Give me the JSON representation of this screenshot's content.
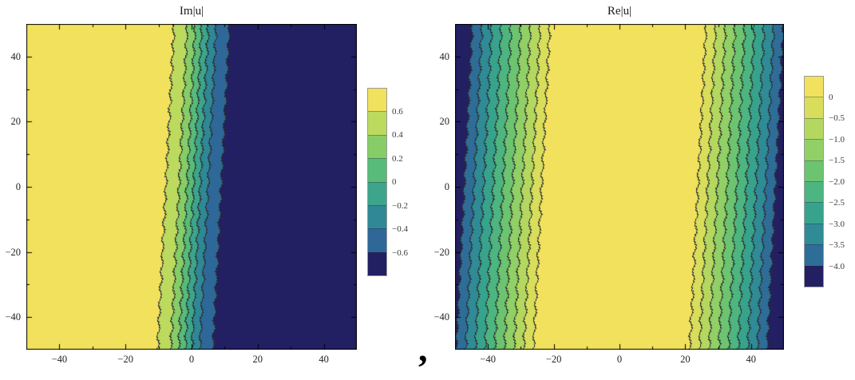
{
  "separator": ",",
  "background_color": "#ffffff",
  "frame_color": "#000000",
  "chart_data": [
    {
      "type": "contour",
      "title": "Im|u|",
      "x_range": [
        -50,
        50
      ],
      "y_range": [
        -50,
        50
      ],
      "x_tick_values": [
        -40,
        -20,
        0,
        20,
        40
      ],
      "x_tick_labels": [
        "−40",
        "−20",
        "0",
        "20",
        "40"
      ],
      "y_tick_values": [
        40,
        20,
        0,
        -20,
        -40
      ],
      "y_tick_labels": [
        "40",
        "20",
        "0",
        "−20",
        "−40"
      ],
      "minor_tick_step": 10,
      "contour_levels": [
        0.6,
        0.4,
        0.2,
        0,
        -0.2,
        -0.4,
        -0.6
      ],
      "legend_labels": [
        "0.6",
        "0.4",
        "0.2",
        "0",
        "−0.2",
        "−0.4",
        "−0.6"
      ],
      "band_colors": [
        "#F2E15C",
        "#BCDA5E",
        "#86CD68",
        "#58BB79",
        "#3CA58B",
        "#2F8896",
        "#2E6898",
        "#231F63"
      ],
      "contour_line_color": "#2b2b2b",
      "legend_position": "right",
      "grid": false,
      "field": {
        "kind": "tanh",
        "amplitude": 0.72,
        "center": 0.5,
        "width": 7,
        "tilt": 0.05
      }
    },
    {
      "type": "contour",
      "title": "Re|u|",
      "x_range": [
        -50,
        50
      ],
      "y_range": [
        -50,
        50
      ],
      "x_tick_values": [
        -40,
        -20,
        0,
        20,
        40
      ],
      "x_tick_labels": [
        "−40",
        "−20",
        "0",
        "20",
        "40"
      ],
      "y_tick_values": [
        40,
        20,
        0,
        -20,
        -40
      ],
      "y_tick_labels": [
        "40",
        "20",
        "0",
        "−20",
        "−40"
      ],
      "minor_tick_step": 10,
      "contour_levels": [
        0,
        -0.5,
        -1.0,
        -1.5,
        -2.0,
        -2.5,
        -3.0,
        -3.5,
        -4.0
      ],
      "legend_labels": [
        "0",
        "−0.5",
        "−1.0",
        "−1.5",
        "−2.0",
        "−2.5",
        "−3.0",
        "−3.5",
        "−4.0"
      ],
      "band_colors": [
        "#F2E15C",
        "#D8DE5B",
        "#B4D85F",
        "#90D066",
        "#6CC471",
        "#4DB580",
        "#38A38D",
        "#2F8B96",
        "#2E6D98",
        "#231F63"
      ],
      "contour_line_color": "#2b2b2b",
      "legend_position": "right",
      "grid": false,
      "field": {
        "kind": "vee",
        "base": 0.3,
        "slope": 0.17,
        "flat_half_width": 22,
        "center": 0,
        "tilt": 0.05
      }
    }
  ]
}
